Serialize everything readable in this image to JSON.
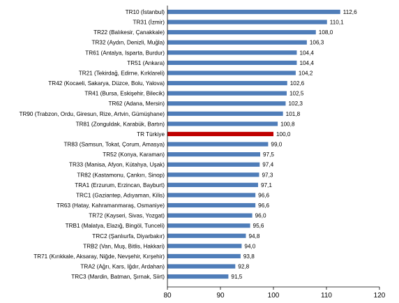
{
  "chart_data": {
    "type": "bar",
    "orientation": "horizontal",
    "title": "",
    "xlabel": "",
    "ylabel": "",
    "xlim": [
      80,
      120
    ],
    "xticks": [
      "80",
      "90",
      "100",
      "110",
      "120"
    ],
    "grid": false,
    "legend": "none",
    "bar_color": "#4F7DB9",
    "highlight_color": "#C00000",
    "highlight_index": 12,
    "categories": [
      "TR10 (İstanbul)",
      "TR31 (İzmir)",
      "TR22 (Balıkesir, Çanakkale)",
      "TR32 (Aydın, Denizli, Muğla)",
      "TR61 (Antalya, Isparta, Burdur)",
      "TR51 (Ankara)",
      "TR21 (Tekirdağ, Edirne, Kırklareli)",
      "TR42 (Kocaeli, Sakarya, Düzce, Bolu, Yalova)",
      "TR41 (Bursa, Eskişehir, Bilecik)",
      "TR62 (Adana, Mersin)",
      "TR90 (Trabzon, Ordu, Giresun, Rize, Artvin, Gümüşhane)",
      "TR81 (Zonguldak, Karabük, Bartın)",
      "TR Türkiye",
      "TR83 (Samsun, Tokat, Çorum, Amasya)",
      "TR52 (Konya, Karaman)",
      "TR33 (Manisa, Afyon, Kütahya, Uşak)",
      "TR82 (Kastamonu, Çankırı, Sinop)",
      "TRA1 (Erzurum, Erzincan, Bayburt)",
      "TRC1 (Gaziantep, Adıyaman, Kilis)",
      "TR63 (Hatay, Kahramanmaraş, Osmaniye)",
      "TR72 (Kayseri, Sivas, Yozgat)",
      "TRB1 (Malatya, Elazığ, Bingöl, Tunceli)",
      "TRC2 (Şanlıurfa, Diyarbakır)",
      "TRB2 (Van, Muş, Bitlis, Hakkari)",
      "TR71 (Kırıkkale, Aksaray, Niğde, Nevşehir, Kırşehir)",
      "TRA2 (Ağrı, Kars, Iğdır, Ardahan)",
      "TRC3 (Mardin, Batman, Şırnak, Siirt)"
    ],
    "values": [
      112.6,
      110.1,
      108.0,
      106.3,
      104.4,
      104.4,
      104.2,
      102.6,
      102.5,
      102.3,
      101.8,
      100.8,
      100.0,
      99.0,
      97.5,
      97.4,
      97.3,
      97.1,
      96.6,
      96.6,
      96.0,
      95.6,
      94.8,
      94.0,
      93.8,
      92.8,
      91.5
    ],
    "value_labels": [
      "112,6",
      "110,1",
      "108,0",
      "106,3",
      "104,4",
      "104,4",
      "104,2",
      "102,6",
      "102,5",
      "102,3",
      "101,8",
      "100,8",
      "100,0",
      "99,0",
      "97,5",
      "97,4",
      "97,3",
      "97,1",
      "96,6",
      "96,6",
      "96,0",
      "95,6",
      "94,8",
      "94,0",
      "93,8",
      "92,8",
      "91,5"
    ]
  }
}
